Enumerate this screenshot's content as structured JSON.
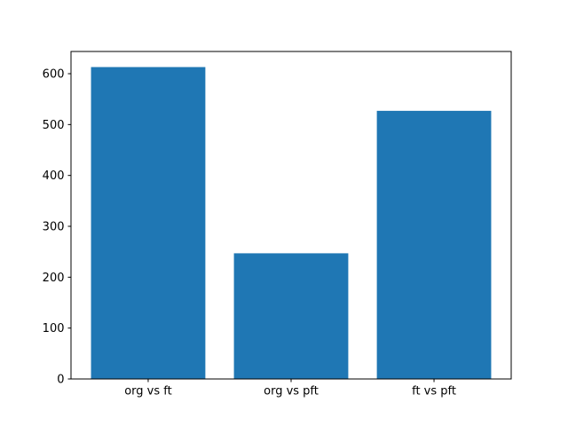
{
  "window": {
    "background": "#ffffff"
  },
  "chart_data": {
    "type": "bar",
    "categories": [
      "org vs ft",
      "org vs pft",
      "ft vs pft"
    ],
    "values": [
      613,
      247,
      527
    ],
    "title": "",
    "xlabel": "",
    "ylabel": "",
    "ylim": [
      0,
      643.65
    ],
    "yticks": [
      0,
      100,
      200,
      300,
      400,
      500,
      600
    ],
    "bar_color": "#1f77b4",
    "axis_color": "#000000",
    "text_color": "#000000",
    "bar_width_fraction": 0.8,
    "grid": false,
    "legend": "none"
  }
}
